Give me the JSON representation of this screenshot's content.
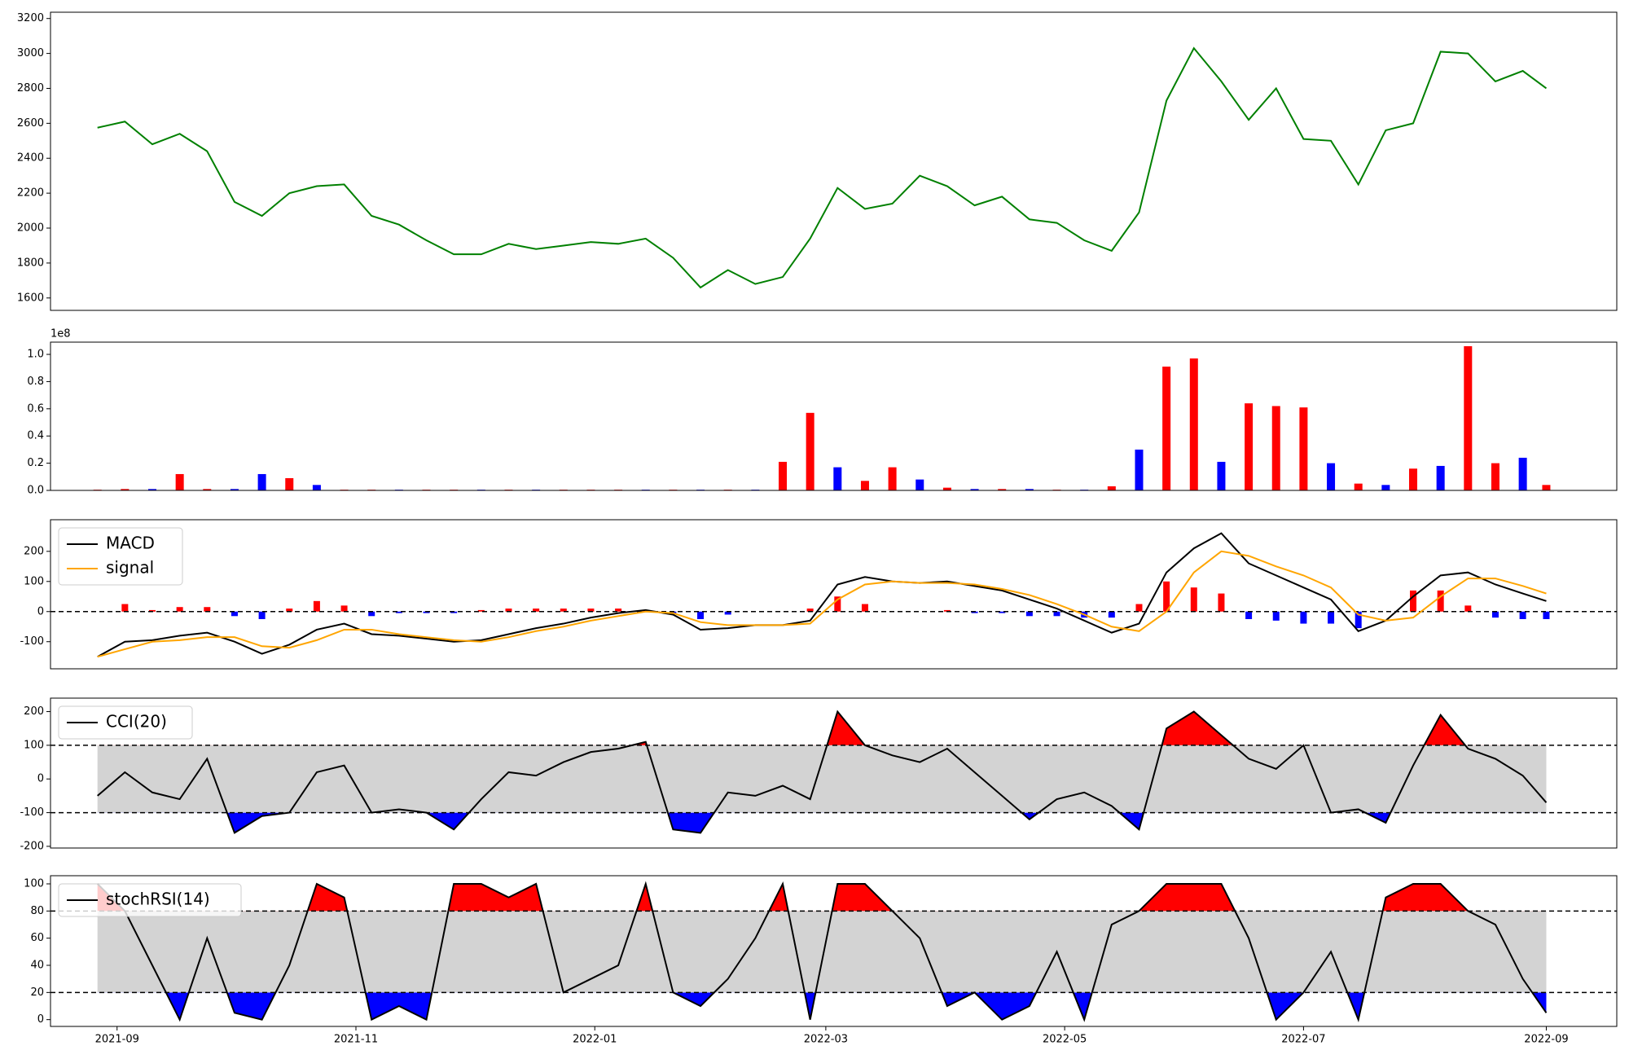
{
  "chart_data": [
    {
      "type": "line",
      "color": "green",
      "x": [
        "2021-08-27",
        "2021-09-03",
        "2021-09-10",
        "2021-09-17",
        "2021-09-24",
        "2021-10-01",
        "2021-10-08",
        "2021-10-15",
        "2021-10-22",
        "2021-10-29",
        "2021-11-05",
        "2021-11-12",
        "2021-11-19",
        "2021-11-26",
        "2021-12-03",
        "2021-12-10",
        "2021-12-17",
        "2021-12-24",
        "2021-12-31",
        "2022-01-07",
        "2022-01-14",
        "2022-01-21",
        "2022-01-28",
        "2022-02-04",
        "2022-02-11",
        "2022-02-18",
        "2022-02-25",
        "2022-03-04",
        "2022-03-11",
        "2022-03-18",
        "2022-03-25",
        "2022-04-01",
        "2022-04-08",
        "2022-04-15",
        "2022-04-22",
        "2022-04-29",
        "2022-05-06",
        "2022-05-13",
        "2022-05-20",
        "2022-05-27",
        "2022-06-03",
        "2022-06-10",
        "2022-06-17",
        "2022-06-24",
        "2022-07-01",
        "2022-07-08",
        "2022-07-15",
        "2022-07-22",
        "2022-07-29",
        "2022-08-05",
        "2022-08-12",
        "2022-08-19",
        "2022-08-26",
        "2022-09-01"
      ],
      "values": [
        2575,
        2610,
        2480,
        2540,
        2440,
        2150,
        2070,
        2200,
        2240,
        2250,
        2070,
        2020,
        1930,
        1850,
        1850,
        1910,
        1880,
        1900,
        1920,
        1910,
        1940,
        1830,
        1660,
        1760,
        1680,
        1720,
        1940,
        2230,
        2110,
        2140,
        2300,
        2240,
        2130,
        2180,
        2050,
        2030,
        1930,
        1870,
        2090,
        2730,
        3030,
        2840,
        2620,
        2800,
        2510,
        2500,
        2250,
        2560,
        2600,
        3010,
        3000,
        2840,
        2900,
        2800
      ],
      "xlim": [
        "2021-08-15",
        "2022-09-19"
      ],
      "ylim": [
        1529,
        3236
      ],
      "yticks": [
        1600,
        1800,
        2000,
        2200,
        2400,
        2600,
        2800,
        3000,
        3200
      ]
    },
    {
      "type": "bar",
      "offset_text": "1e8",
      "x": [
        "2021-08-27",
        "2021-09-03",
        "2021-09-10",
        "2021-09-17",
        "2021-09-24",
        "2021-10-01",
        "2021-10-08",
        "2021-10-15",
        "2021-10-22",
        "2021-10-29",
        "2021-11-05",
        "2021-11-12",
        "2021-11-19",
        "2021-11-26",
        "2021-12-03",
        "2021-12-10",
        "2021-12-17",
        "2021-12-24",
        "2021-12-31",
        "2022-01-07",
        "2022-01-14",
        "2022-01-21",
        "2022-01-28",
        "2022-02-04",
        "2022-02-11",
        "2022-02-18",
        "2022-02-25",
        "2022-03-04",
        "2022-03-11",
        "2022-03-18",
        "2022-03-25",
        "2022-04-01",
        "2022-04-08",
        "2022-04-15",
        "2022-04-22",
        "2022-04-29",
        "2022-05-06",
        "2022-05-13",
        "2022-05-20",
        "2022-05-27",
        "2022-06-03",
        "2022-06-10",
        "2022-06-17",
        "2022-06-24",
        "2022-07-01",
        "2022-07-08",
        "2022-07-15",
        "2022-07-22",
        "2022-07-29",
        "2022-08-05",
        "2022-08-12",
        "2022-08-19",
        "2022-08-26",
        "2022-09-01"
      ],
      "values": [
        0.005,
        0.01,
        0.01,
        0.12,
        0.01,
        0.01,
        0.12,
        0.09,
        0.04,
        0.005,
        0.005,
        0.005,
        0.005,
        0.005,
        0.005,
        0.005,
        0.005,
        0.005,
        0.005,
        0.005,
        0.005,
        0.005,
        0.005,
        0.005,
        0.005,
        0.21,
        0.57,
        0.17,
        0.07,
        0.17,
        0.08,
        0.02,
        0.01,
        0.01,
        0.01,
        0.005,
        0.005,
        0.03,
        0.3,
        0.91,
        0.97,
        0.21,
        0.64,
        0.62,
        0.61,
        0.2,
        0.05,
        0.04,
        0.16,
        0.18,
        1.06,
        0.2,
        0.24,
        0.04
      ],
      "colors": [
        "red",
        "red",
        "blue",
        "red",
        "red",
        "blue",
        "blue",
        "red",
        "blue",
        "red",
        "red",
        "blue",
        "red",
        "red",
        "blue",
        "red",
        "blue",
        "red",
        "red",
        "red",
        "blue",
        "red",
        "blue",
        "red",
        "blue",
        "red",
        "red",
        "blue",
        "red",
        "red",
        "blue",
        "red",
        "blue",
        "red",
        "blue",
        "red",
        "blue",
        "red",
        "blue",
        "red",
        "red",
        "blue",
        "red",
        "red",
        "red",
        "blue",
        "red",
        "blue",
        "red",
        "blue",
        "red",
        "red",
        "blue",
        "red"
      ],
      "xlim": [
        "2021-08-15",
        "2022-09-19"
      ],
      "ylim": [
        0,
        1.09
      ],
      "yticks": [
        {
          "value": 0,
          "label": "0.0"
        },
        0.2,
        0.4,
        0.6,
        0.8,
        {
          "value": 1,
          "label": "1.0"
        }
      ]
    },
    {
      "type": "line",
      "legend": "upper left",
      "x": [
        "2021-08-27",
        "2021-09-03",
        "2021-09-10",
        "2021-09-17",
        "2021-09-24",
        "2021-10-01",
        "2021-10-08",
        "2021-10-15",
        "2021-10-22",
        "2021-10-29",
        "2021-11-05",
        "2021-11-12",
        "2021-11-19",
        "2021-11-26",
        "2021-12-03",
        "2021-12-10",
        "2021-12-17",
        "2021-12-24",
        "2021-12-31",
        "2022-01-07",
        "2022-01-14",
        "2022-01-21",
        "2022-01-28",
        "2022-02-04",
        "2022-02-11",
        "2022-02-18",
        "2022-02-25",
        "2022-03-04",
        "2022-03-11",
        "2022-03-18",
        "2022-03-25",
        "2022-04-01",
        "2022-04-08",
        "2022-04-15",
        "2022-04-22",
        "2022-04-29",
        "2022-05-06",
        "2022-05-13",
        "2022-05-20",
        "2022-05-27",
        "2022-06-03",
        "2022-06-10",
        "2022-06-17",
        "2022-06-24",
        "2022-07-01",
        "2022-07-08",
        "2022-07-15",
        "2022-07-22",
        "2022-07-29",
        "2022-08-05",
        "2022-08-12",
        "2022-08-19",
        "2022-08-26",
        "2022-09-01"
      ],
      "series": [
        {
          "name": "MACD",
          "color": "black",
          "values": [
            -150,
            -100,
            -95,
            -80,
            -70,
            -100,
            -140,
            -110,
            -60,
            -40,
            -75,
            -80,
            -90,
            -100,
            -95,
            -75,
            -55,
            -40,
            -20,
            -5,
            5,
            -10,
            -60,
            -55,
            -45,
            -45,
            -30,
            90,
            115,
            100,
            95,
            100,
            85,
            70,
            40,
            10,
            -30,
            -70,
            -40,
            130,
            210,
            260,
            160,
            120,
            80,
            40,
            -65,
            -30,
            50,
            120,
            130,
            90,
            60,
            35
          ]
        },
        {
          "name": "signal",
          "color": "orange",
          "values": [
            -150,
            -125,
            -100,
            -95,
            -85,
            -85,
            -115,
            -120,
            -95,
            -60,
            -60,
            -75,
            -85,
            -95,
            -100,
            -85,
            -65,
            -50,
            -30,
            -15,
            0,
            -5,
            -35,
            -45,
            -45,
            -45,
            -40,
            40,
            90,
            100,
            95,
            95,
            90,
            75,
            55,
            25,
            -10,
            -50,
            -65,
            0,
            130,
            200,
            185,
            150,
            120,
            80,
            -10,
            -30,
            -20,
            50,
            110,
            110,
            85,
            60
          ]
        }
      ],
      "histogram": {
        "positive_color": "red",
        "negative_color": "blue",
        "values": [
          0,
          25,
          5,
          15,
          15,
          -15,
          -25,
          10,
          35,
          20,
          -15,
          -5,
          -5,
          -5,
          5,
          10,
          10,
          10,
          10,
          10,
          5,
          -5,
          -25,
          -10,
          0,
          0,
          10,
          50,
          25,
          0,
          0,
          5,
          -5,
          -5,
          -15,
          -15,
          -20,
          -20,
          25,
          100,
          80,
          60,
          -25,
          -30,
          -40,
          -40,
          -55,
          0,
          70,
          70,
          20,
          -20,
          -25,
          -25
        ]
      },
      "levels": [
        0
      ],
      "xlim": [
        "2021-08-15",
        "2022-09-19"
      ],
      "ylim": [
        -190,
        305
      ],
      "yticks": [
        -100,
        0,
        100,
        200
      ]
    },
    {
      "type": "line",
      "legend": "upper left",
      "band_color": "lightgray",
      "above_color": "red",
      "below_color": "blue",
      "x": [
        "2021-08-27",
        "2021-09-03",
        "2021-09-10",
        "2021-09-17",
        "2021-09-24",
        "2021-10-01",
        "2021-10-08",
        "2021-10-15",
        "2021-10-22",
        "2021-10-29",
        "2021-11-05",
        "2021-11-12",
        "2021-11-19",
        "2021-11-26",
        "2021-12-03",
        "2021-12-10",
        "2021-12-17",
        "2021-12-24",
        "2021-12-31",
        "2022-01-07",
        "2022-01-14",
        "2022-01-21",
        "2022-01-28",
        "2022-02-04",
        "2022-02-11",
        "2022-02-18",
        "2022-02-25",
        "2022-03-04",
        "2022-03-11",
        "2022-03-18",
        "2022-03-25",
        "2022-04-01",
        "2022-04-08",
        "2022-04-15",
        "2022-04-22",
        "2022-04-29",
        "2022-05-06",
        "2022-05-13",
        "2022-05-20",
        "2022-05-27",
        "2022-06-03",
        "2022-06-10",
        "2022-06-17",
        "2022-06-24",
        "2022-07-01",
        "2022-07-08",
        "2022-07-15",
        "2022-07-22",
        "2022-07-29",
        "2022-08-05",
        "2022-08-12",
        "2022-08-19",
        "2022-08-26",
        "2022-09-01"
      ],
      "series": [
        {
          "name": "CCI(20)",
          "color": "black",
          "values": [
            -50,
            20,
            -40,
            -60,
            60,
            -160,
            -110,
            -100,
            20,
            40,
            -100,
            -90,
            -100,
            -150,
            -60,
            20,
            10,
            50,
            80,
            90,
            110,
            -150,
            -160,
            -40,
            -50,
            -20,
            -60,
            200,
            100,
            70,
            50,
            90,
            20,
            -50,
            -120,
            -60,
            -40,
            -80,
            -150,
            150,
            200,
            130,
            60,
            30,
            100,
            -100,
            -90,
            -130,
            40,
            190,
            90,
            60,
            10,
            -70
          ]
        }
      ],
      "levels": [
        100,
        -100
      ],
      "xlim": [
        "2021-08-15",
        "2022-09-19"
      ],
      "ylim": [
        -205,
        240
      ],
      "yticks": [
        -200,
        -100,
        0,
        100,
        200
      ]
    },
    {
      "type": "line",
      "legend": "upper left",
      "band_color": "lightgray",
      "above_color": "red",
      "below_color": "blue",
      "x": [
        "2021-08-27",
        "2021-09-03",
        "2021-09-10",
        "2021-09-17",
        "2021-09-24",
        "2021-10-01",
        "2021-10-08",
        "2021-10-15",
        "2021-10-22",
        "2021-10-29",
        "2021-11-05",
        "2021-11-12",
        "2021-11-19",
        "2021-11-26",
        "2021-12-03",
        "2021-12-10",
        "2021-12-17",
        "2021-12-24",
        "2021-12-31",
        "2022-01-07",
        "2022-01-14",
        "2022-01-21",
        "2022-01-28",
        "2022-02-04",
        "2022-02-11",
        "2022-02-18",
        "2022-02-25",
        "2022-03-04",
        "2022-03-11",
        "2022-03-18",
        "2022-03-25",
        "2022-04-01",
        "2022-04-08",
        "2022-04-15",
        "2022-04-22",
        "2022-04-29",
        "2022-05-06",
        "2022-05-13",
        "2022-05-20",
        "2022-05-27",
        "2022-06-03",
        "2022-06-10",
        "2022-06-17",
        "2022-06-24",
        "2022-07-01",
        "2022-07-08",
        "2022-07-15",
        "2022-07-22",
        "2022-07-29",
        "2022-08-05",
        "2022-08-12",
        "2022-08-19",
        "2022-08-26",
        "2022-09-01"
      ],
      "series": [
        {
          "name": "stochRSI(14)",
          "color": "black",
          "values": [
            100,
            80,
            40,
            0,
            60,
            5,
            0,
            40,
            100,
            90,
            0,
            10,
            0,
            100,
            100,
            90,
            100,
            20,
            30,
            40,
            100,
            20,
            10,
            30,
            60,
            100,
            0,
            100,
            100,
            80,
            60,
            10,
            20,
            0,
            10,
            50,
            0,
            70,
            80,
            100,
            100,
            100,
            60,
            0,
            20,
            50,
            0,
            90,
            100,
            100,
            80,
            70,
            30,
            5
          ]
        }
      ],
      "levels": [
        80,
        20
      ],
      "xlim": [
        "2021-08-15",
        "2022-09-19"
      ],
      "ylim": [
        -5,
        106
      ],
      "yticks": [
        0,
        20,
        40,
        60,
        80,
        100
      ],
      "xticks": [
        {
          "value": "2021-09-01",
          "label": "2021-09"
        },
        {
          "value": "2021-11-01",
          "label": "2021-11"
        },
        {
          "value": "2022-01-01",
          "label": "2022-01"
        },
        {
          "value": "2022-03-01",
          "label": "2022-03"
        },
        {
          "value": "2022-05-01",
          "label": "2022-05"
        },
        {
          "value": "2022-07-01",
          "label": "2022-07"
        },
        {
          "value": "2022-09-01",
          "label": "2022-09"
        }
      ]
    }
  ]
}
